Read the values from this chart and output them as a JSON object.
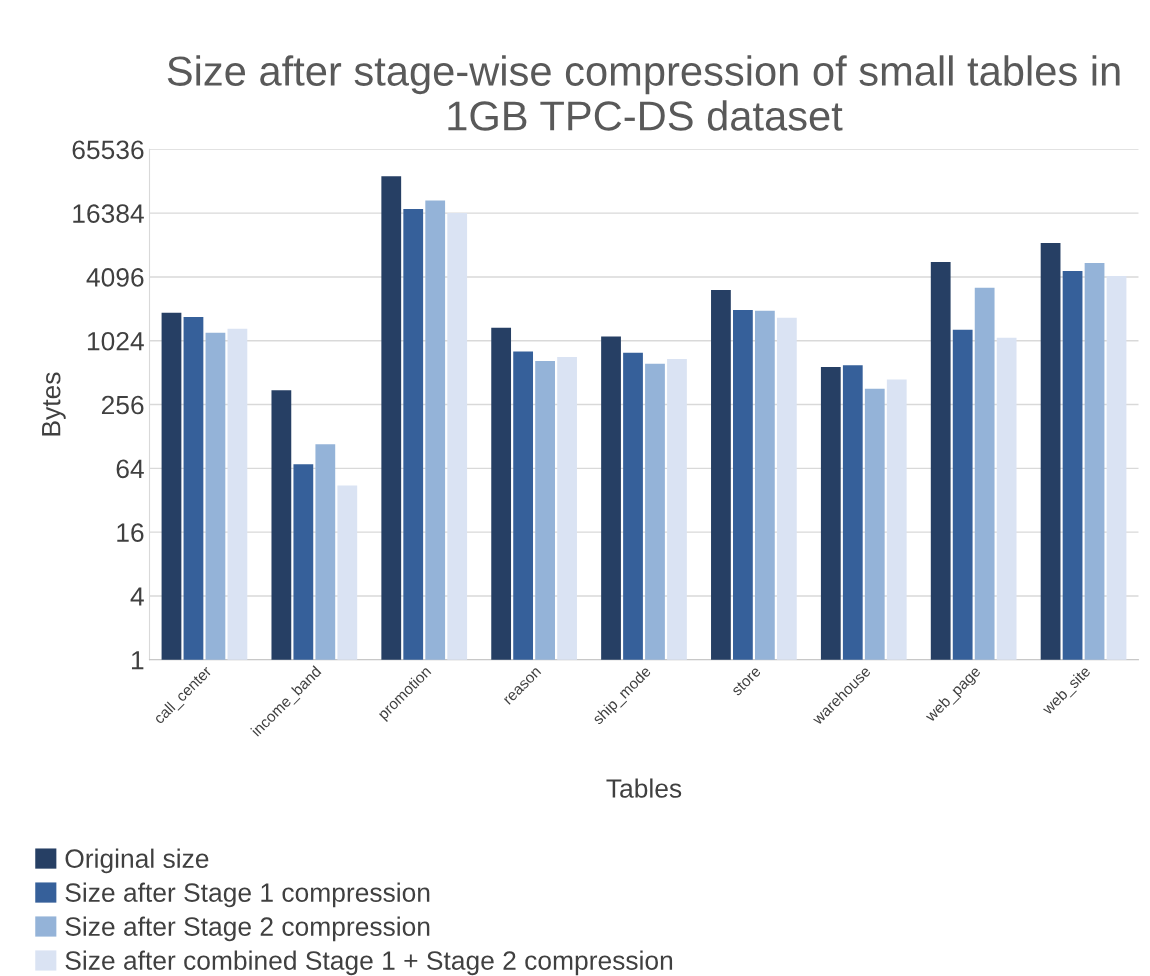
{
  "chart_data": {
    "type": "bar",
    "title": "Size after stage-wise compression of small tables in 1GB TPC-DS dataset",
    "xlabel": "Tables",
    "ylabel": "Bytes",
    "categories": [
      "call_center",
      "income_band",
      "promotion",
      "reason",
      "ship_mode",
      "store",
      "warehouse",
      "web_page",
      "web_site"
    ],
    "series": [
      {
        "name": "Original size",
        "color": "#263f64",
        "values": [
          1880,
          350,
          36600,
          1360,
          1120,
          3090,
          580,
          5670,
          8550
        ]
      },
      {
        "name": "Size after Stage 1 compression",
        "color": "#36609a",
        "values": [
          1720,
          70,
          17900,
          810,
          790,
          2000,
          600,
          1300,
          4670
        ]
      },
      {
        "name": "Size after Stage 2 compression",
        "color": "#94b3d8",
        "values": [
          1220,
          108,
          21600,
          660,
          620,
          1960,
          360,
          3230,
          5540
        ]
      },
      {
        "name": "Size after combined Stage 1 + Stage 2 compression",
        "color": "#dae3f3",
        "values": [
          1330,
          44,
          16400,
          720,
          690,
          1690,
          440,
          1090,
          4190
        ]
      }
    ],
    "log": "y",
    "ylim": [
      1,
      65536
    ],
    "yticks": [
      1,
      4,
      16,
      64,
      256,
      1024,
      4096,
      16384,
      65536
    ],
    "grid": "y",
    "legend": "bottom"
  }
}
